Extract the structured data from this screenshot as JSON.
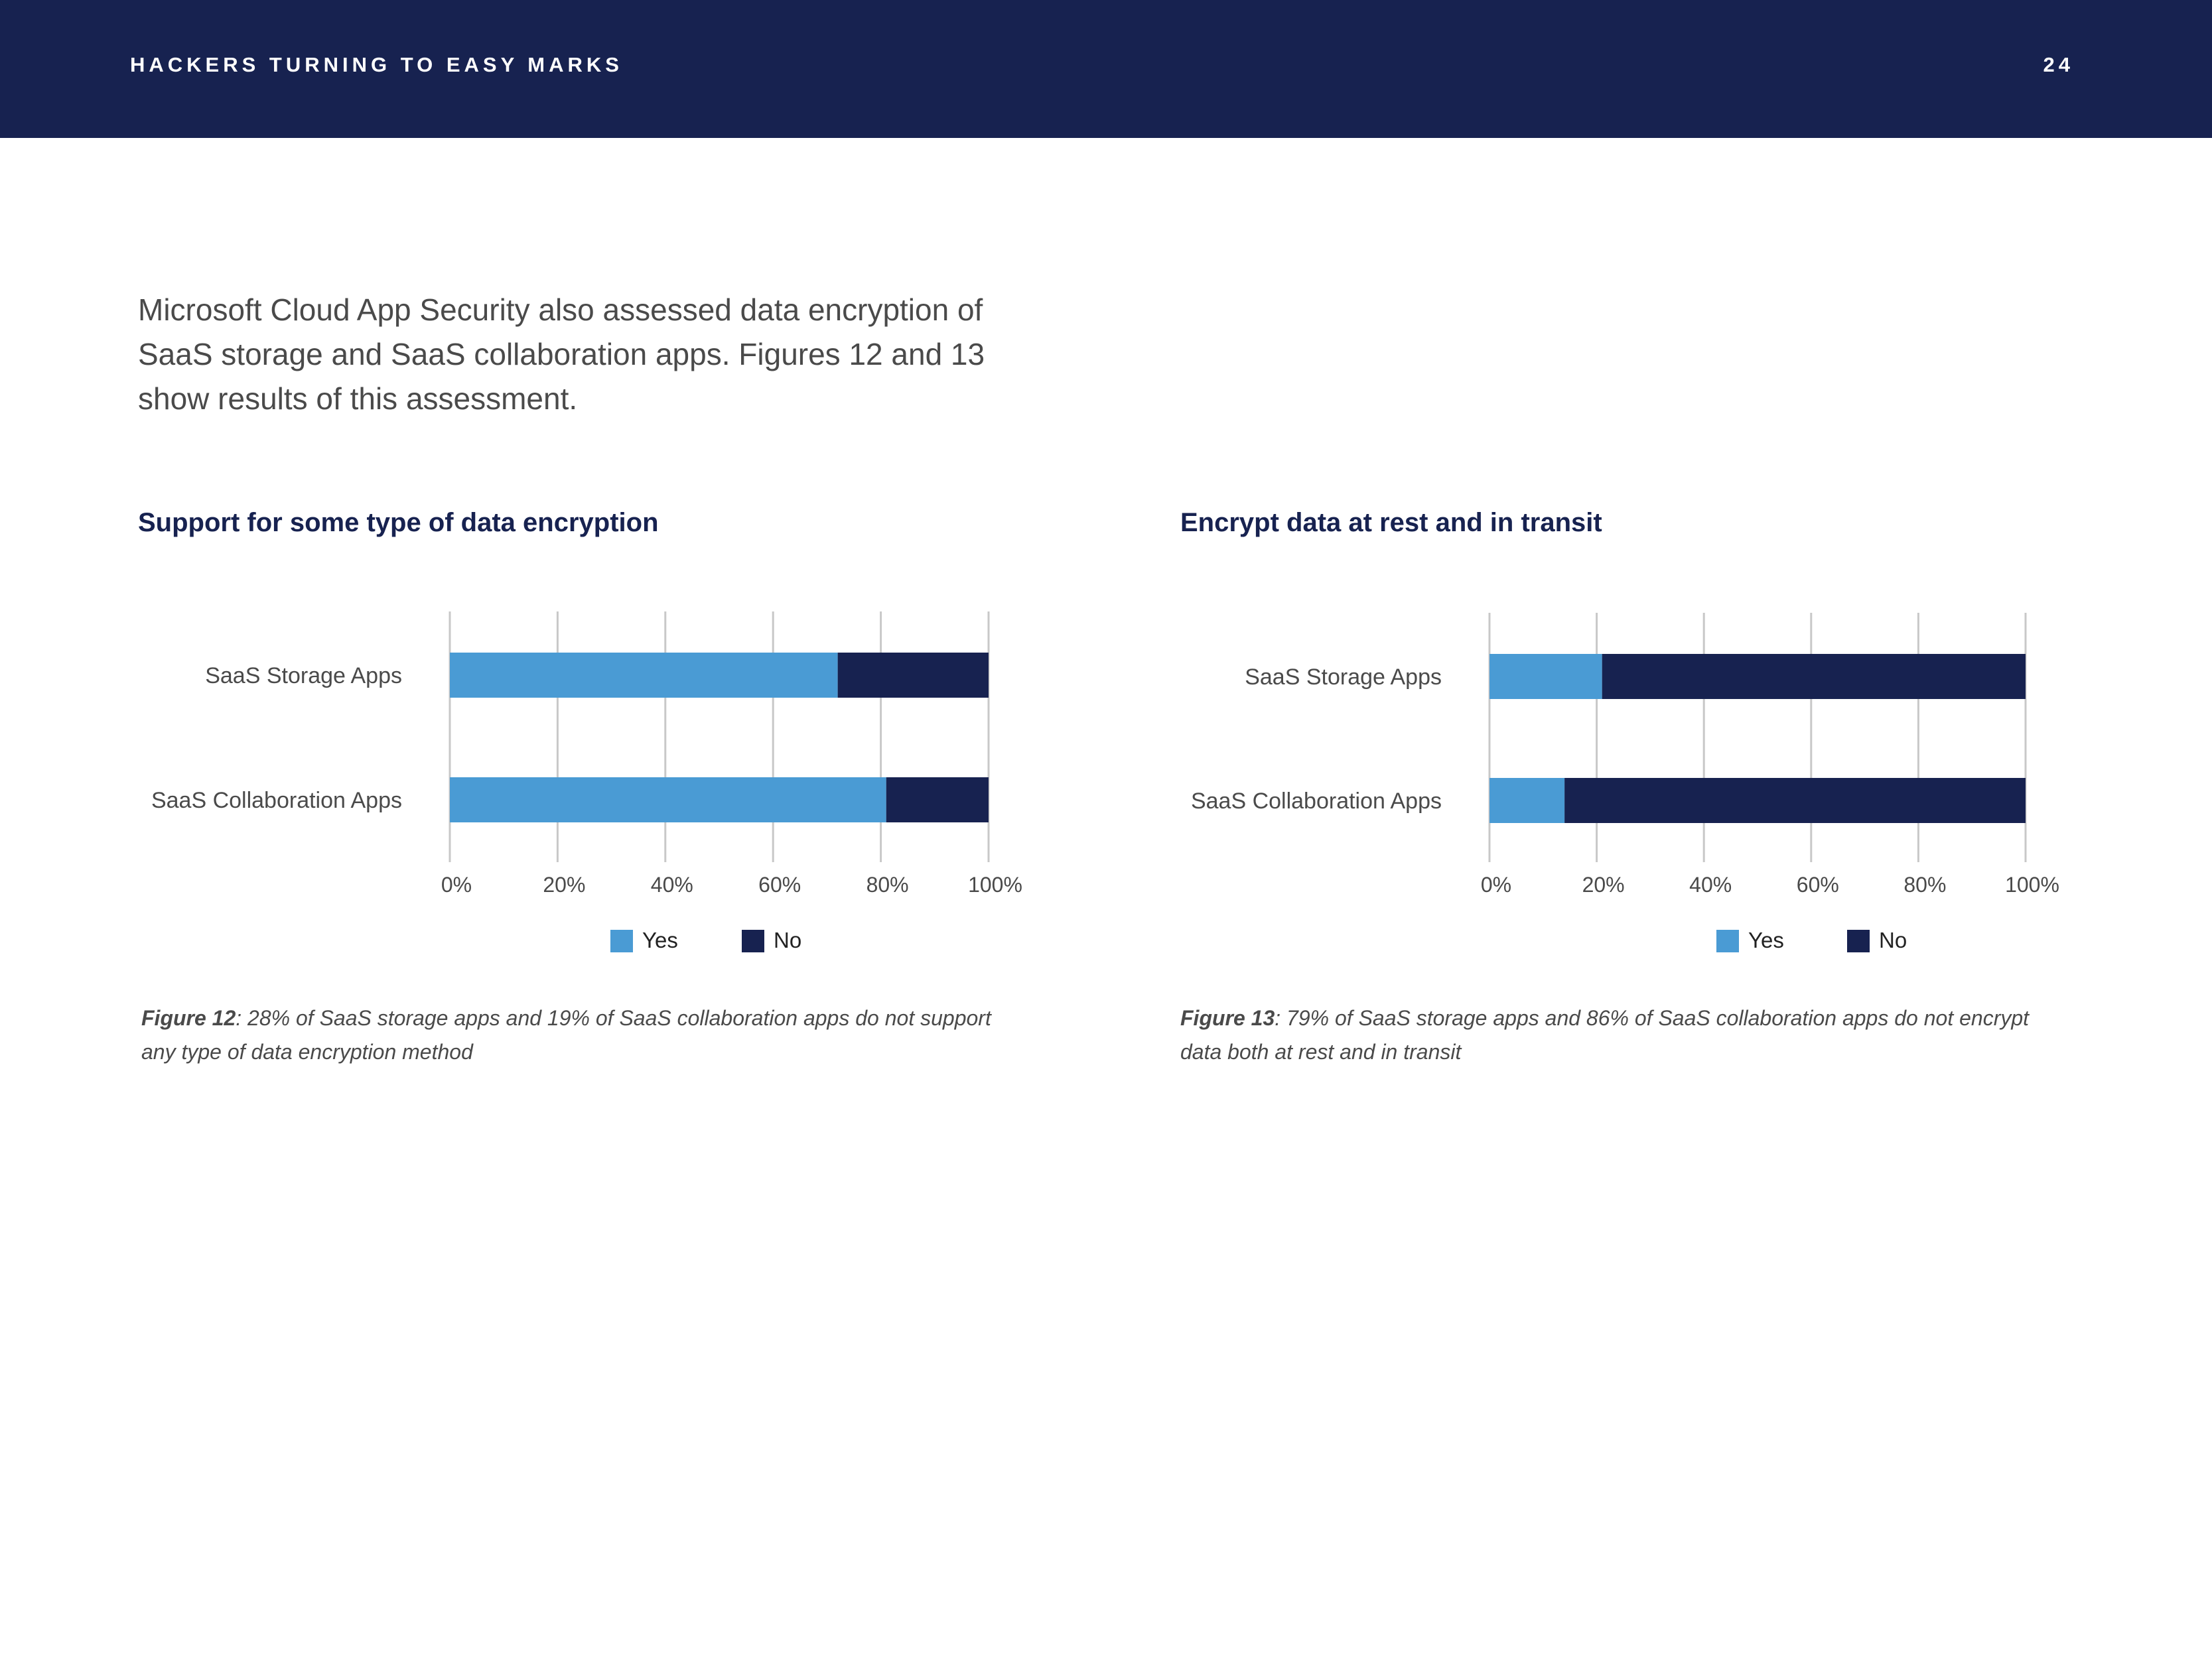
{
  "header": {
    "title": "HACKERS TURNING TO EASY MARKS",
    "page_number": "24"
  },
  "intro": "Microsoft Cloud App Security also assessed data encryption of SaaS storage and SaaS collaboration apps. Figures 12 and 13 show results of this assessment.",
  "colors": {
    "header_bg": "#172250",
    "yes": "#4a9bd4",
    "no": "#172250",
    "grid": "#c8c8c8"
  },
  "figures": [
    {
      "title": "Support for some type of data encryption",
      "caption_label": "Figure 12",
      "caption_text": ": 28% of SaaS storage apps and 19% of SaaS collaboration apps do not support any type of data encryption method"
    },
    {
      "title": "Encrypt data at rest and in transit",
      "caption_label": "Figure 13",
      "caption_text": ": 79% of SaaS storage apps and 86% of SaaS collaboration apps do not encrypt data both at rest and in transit"
    }
  ],
  "chart_data": [
    {
      "type": "bar",
      "orientation": "horizontal",
      "stacked": true,
      "categories": [
        "SaaS Storage Apps",
        "SaaS Collaboration Apps"
      ],
      "series": [
        {
          "name": "Yes",
          "values": [
            72,
            81
          ]
        },
        {
          "name": "No",
          "values": [
            28,
            19
          ]
        }
      ],
      "x_ticks": [
        "0%",
        "20%",
        "40%",
        "60%",
        "80%",
        "100%"
      ],
      "xlim": [
        0,
        100
      ],
      "grid": true,
      "legend": "bottom"
    },
    {
      "type": "bar",
      "orientation": "horizontal",
      "stacked": true,
      "categories": [
        "SaaS Storage Apps",
        "SaaS Collaboration Apps"
      ],
      "series": [
        {
          "name": "Yes",
          "values": [
            21,
            14
          ]
        },
        {
          "name": "No",
          "values": [
            79,
            86
          ]
        }
      ],
      "x_ticks": [
        "0%",
        "20%",
        "40%",
        "60%",
        "80%",
        "100%"
      ],
      "xlim": [
        0,
        100
      ],
      "grid": true,
      "legend": "bottom"
    }
  ]
}
